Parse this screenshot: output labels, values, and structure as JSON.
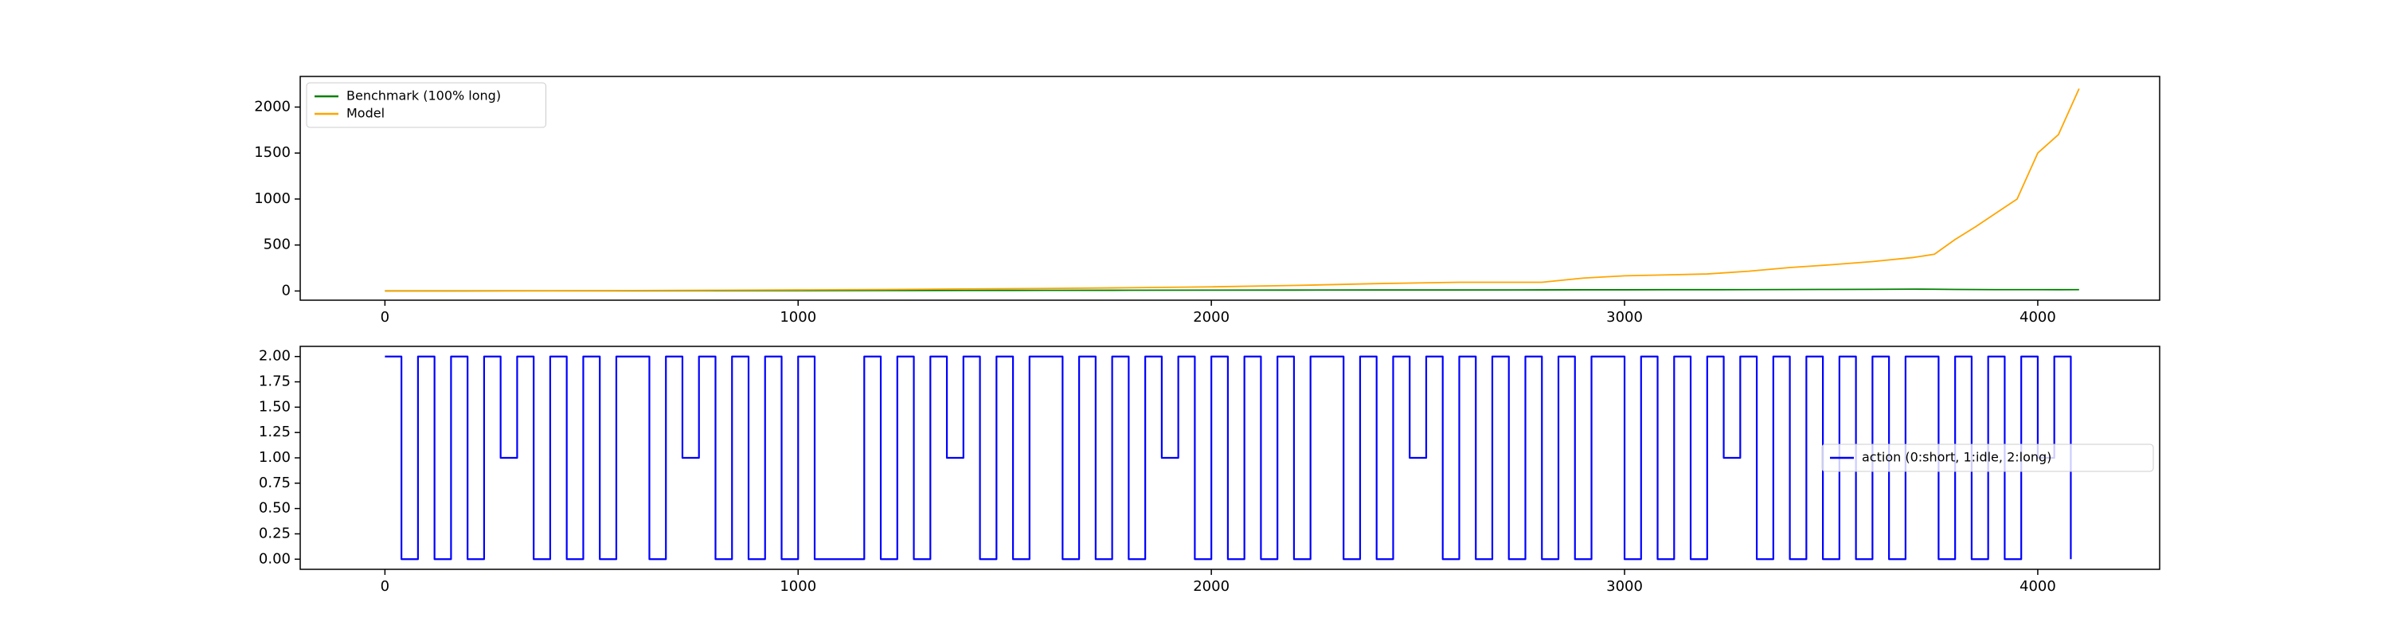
{
  "chart_data": [
    {
      "type": "line",
      "xlim": [
        -205,
        4295
      ],
      "xticks": [
        0,
        1000,
        2000,
        3000,
        4000
      ],
      "ylim": [
        -100,
        2333
      ],
      "yticks": [
        0,
        500,
        1000,
        1500,
        2000
      ],
      "legend": "upper left",
      "series": [
        {
          "name": "Benchmark (100% long)",
          "color": "#008000",
          "x": [
            0,
            200,
            400,
            600,
            800,
            1000,
            1200,
            1400,
            1600,
            1800,
            2000,
            2200,
            2400,
            2600,
            2800,
            2900,
            3000,
            3100,
            3200,
            3300,
            3400,
            3500,
            3600,
            3700,
            3750,
            3800,
            3850,
            3900,
            3950,
            4000,
            4050,
            4100
          ],
          "values": [
            1,
            1,
            2,
            2,
            3,
            4,
            5,
            6,
            7,
            8,
            9,
            10,
            11,
            11,
            12,
            13,
            13,
            14,
            14,
            15,
            16,
            17,
            18,
            20,
            19,
            17,
            16,
            15,
            15,
            15,
            14,
            15
          ]
        },
        {
          "name": "Model",
          "color": "#ffa500",
          "x": [
            0,
            200,
            400,
            600,
            800,
            1000,
            1200,
            1400,
            1600,
            1800,
            2000,
            2200,
            2400,
            2600,
            2800,
            2900,
            3000,
            3100,
            3200,
            3300,
            3400,
            3500,
            3600,
            3700,
            3750,
            3800,
            3850,
            3900,
            3950,
            4000,
            4050,
            4100
          ],
          "values": [
            1,
            2,
            3,
            5,
            8,
            12,
            16,
            22,
            28,
            35,
            45,
            60,
            80,
            95,
            95,
            140,
            165,
            175,
            185,
            215,
            255,
            285,
            320,
            365,
            400,
            560,
            700,
            850,
            1000,
            1500,
            1700,
            2200
          ]
        }
      ]
    },
    {
      "type": "step",
      "xlim": [
        -205,
        4295
      ],
      "xticks": [
        0,
        1000,
        2000,
        3000,
        4000
      ],
      "ylim": [
        -0.1,
        2.1
      ],
      "yticks": [
        {
          "value": 0,
          "label": "0.00"
        },
        {
          "value": 0.25,
          "label": "0.25"
        },
        {
          "value": 0.5,
          "label": "0.50"
        },
        {
          "value": 0.75,
          "label": "0.75"
        },
        {
          "value": 1,
          "label": "1.00"
        },
        {
          "value": 1.25,
          "label": "1.25"
        },
        {
          "value": 1.5,
          "label": "1.50"
        },
        {
          "value": 1.75,
          "label": "1.75"
        },
        {
          "value": 2,
          "label": "2.00"
        }
      ],
      "legend": "center right",
      "series": [
        {
          "name": "action (0:short, 1:idle, 2:long)",
          "color": "#0000ff",
          "x": [
            0,
            40,
            80,
            120,
            160,
            200,
            240,
            280,
            320,
            360,
            400,
            440,
            480,
            520,
            560,
            600,
            640,
            680,
            720,
            760,
            800,
            840,
            880,
            920,
            960,
            1000,
            1040,
            1080,
            1120,
            1160,
            1200,
            1240,
            1280,
            1320,
            1360,
            1400,
            1440,
            1480,
            1520,
            1560,
            1600,
            1640,
            1680,
            1720,
            1760,
            1800,
            1840,
            1880,
            1920,
            1960,
            2000,
            2040,
            2080,
            2120,
            2160,
            2200,
            2240,
            2280,
            2320,
            2360,
            2400,
            2440,
            2480,
            2520,
            2560,
            2600,
            2640,
            2680,
            2720,
            2760,
            2800,
            2840,
            2880,
            2920,
            2960,
            3000,
            3040,
            3080,
            3120,
            3160,
            3200,
            3240,
            3280,
            3320,
            3360,
            3400,
            3440,
            3480,
            3520,
            3560,
            3600,
            3640,
            3680,
            3720,
            3760,
            3800,
            3840,
            3880,
            3920,
            3960,
            4000,
            4040,
            4080
          ],
          "values": [
            2,
            0,
            2,
            0,
            2,
            0,
            2,
            1,
            2,
            0,
            2,
            0,
            2,
            0,
            2,
            2,
            0,
            2,
            1,
            2,
            0,
            2,
            0,
            2,
            0,
            2,
            0,
            0,
            0,
            2,
            0,
            2,
            0,
            2,
            1,
            2,
            0,
            2,
            0,
            2,
            2,
            0,
            2,
            0,
            2,
            0,
            2,
            1,
            2,
            0,
            2,
            0,
            2,
            0,
            2,
            0,
            2,
            2,
            0,
            2,
            0,
            2,
            1,
            2,
            0,
            2,
            0,
            2,
            0,
            2,
            0,
            2,
            0,
            2,
            2,
            0,
            2,
            0,
            2,
            0,
            2,
            1,
            2,
            0,
            2,
            0,
            2,
            0,
            2,
            0,
            2,
            0,
            2,
            2,
            0,
            2,
            0,
            2,
            0,
            2,
            1,
            2,
            0
          ]
        }
      ]
    }
  ]
}
